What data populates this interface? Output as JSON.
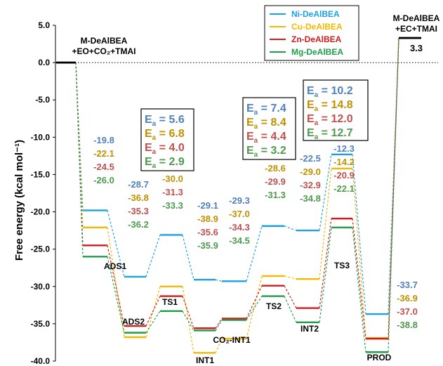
{
  "chart_data": {
    "type": "line",
    "ylabel": "Free energy (kcal mol⁻¹)",
    "yticks": [
      "5.0",
      "0.0",
      "-5.0",
      "-10.0",
      "-15.0",
      "-20.0",
      "-25.0",
      "-30.0",
      "-35.0",
      "-40.0"
    ],
    "ylim": [
      -40,
      5
    ],
    "states": [
      {
        "key": "start",
        "label": "M-DeAlBEA\n+EO+CO₂+TMAI"
      },
      {
        "key": "ads1",
        "label": "ADS1"
      },
      {
        "key": "ads2",
        "label": "ADS2"
      },
      {
        "key": "ts1",
        "label": "TS1"
      },
      {
        "key": "int1",
        "label": "INT1"
      },
      {
        "key": "co2int1",
        "label": "CO₂-INT1"
      },
      {
        "key": "ts2",
        "label": "TS2"
      },
      {
        "key": "int2",
        "label": "INT2"
      },
      {
        "key": "ts3",
        "label": "TS3"
      },
      {
        "key": "prod",
        "label": "PROD"
      },
      {
        "key": "end",
        "label": "M-DeAlBEA\n+EC+TMAI"
      }
    ],
    "series": [
      {
        "name": "Ni-DeAlBEA",
        "color": "#1da1e6",
        "values": [
          0.0,
          -19.8,
          -28.7,
          -23.1,
          -29.1,
          -29.3,
          -21.9,
          -22.5,
          -12.3,
          -33.7,
          3.3
        ],
        "labels": [
          "",
          "-19.8",
          "-28.7",
          "-23.1",
          "-29.1",
          "-29.3",
          "-21.9",
          "-22.5",
          "-12.3",
          "-33.7",
          ""
        ],
        "label_color": "#4f81bd"
      },
      {
        "name": "Cu-DeAlBEA",
        "color": "#f5b800",
        "values": [
          0.0,
          -22.1,
          -36.8,
          -30.0,
          -38.9,
          -37.0,
          -28.6,
          -29.0,
          -14.2,
          -36.9,
          3.3
        ],
        "labels": [
          "",
          "-22.1",
          "-36.8",
          "-30.0",
          "-38.9",
          "-37.0",
          "-28.6",
          "-29.0",
          "-14.2",
          "-36.9",
          ""
        ],
        "label_color": "#c09000"
      },
      {
        "name": "Zn-DeAlBEA",
        "color": "#d01c1c",
        "values": [
          0.0,
          -24.5,
          -35.3,
          -31.3,
          -35.6,
          -34.3,
          -29.9,
          -32.9,
          -20.9,
          -37.0,
          3.3
        ],
        "labels": [
          "",
          "-24.5",
          "-35.3",
          "-31.3",
          "-35.6",
          "-34.3",
          "-29.9",
          "-32.9",
          "-20.9",
          "-37.0",
          ""
        ],
        "label_color": "#c0504d"
      },
      {
        "name": "Mg-DeAlBEA",
        "color": "#1e9e4a",
        "values": [
          0.0,
          -26.0,
          -36.2,
          -33.3,
          -35.9,
          -34.5,
          -31.3,
          -34.8,
          -22.1,
          -38.8,
          3.3
        ],
        "labels": [
          "",
          "-26.0",
          "-36.2",
          "-33.3",
          "-35.9",
          "-34.5",
          "-31.3",
          "-34.8",
          "-22.1",
          "-38.8",
          ""
        ],
        "label_color": "#4e9a4e"
      }
    ],
    "end_value_label": "3.3",
    "ea_boxes": [
      {
        "lines": [
          "= 5.6",
          "= 6.8",
          "= 4.0",
          "= 2.9"
        ]
      },
      {
        "lines": [
          "= 7.4",
          "= 8.4",
          "= 4.4",
          "= 3.2"
        ]
      },
      {
        "lines": [
          "= 10.2",
          "= 14.8",
          "= 12.0",
          "= 12.7"
        ]
      }
    ],
    "ea_symbol": "E",
    "ea_subscript": "a",
    "legend_position": "top-center",
    "zero_line": "dotted"
  }
}
